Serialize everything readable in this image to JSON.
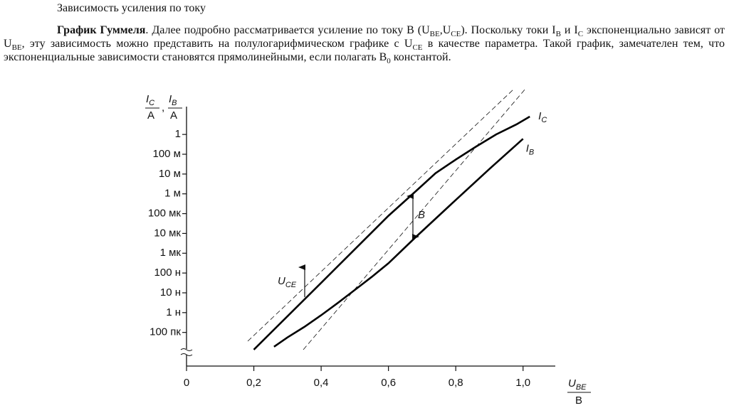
{
  "header": {
    "title": "Зависимость усиления по току"
  },
  "paragraph": {
    "runs": [
      {
        "bold": "График Гуммеля"
      },
      {
        "text": ". Далее подробно рассматривается усиление по току B (U"
      },
      {
        "sub": "BE"
      },
      {
        "text": ",U"
      },
      {
        "sub": "CE"
      },
      {
        "text": "). Поскольку токи I"
      },
      {
        "sub": "B"
      },
      {
        "text": " и I"
      },
      {
        "sub": "C"
      },
      {
        "text": " экспоненциально зависят от U"
      },
      {
        "sub": "BE"
      },
      {
        "text": ", эту зависимость можно представить на полулогарифмическом графике с U"
      },
      {
        "sub": "CE"
      },
      {
        "text": " в качестве параметра. Такой график, замечателен тем, что экспоненциальные зависимости становятся прямолинейными, если полагать B"
      },
      {
        "sub": "0"
      },
      {
        "text": " константой."
      }
    ]
  },
  "chart_data": {
    "type": "line",
    "log_y": true,
    "color": "#000000",
    "y_label": {
      "ic": "I",
      "ic_sub": "C",
      "ib": "I",
      "ib_sub": "B",
      "unit": "А",
      "separator": ","
    },
    "x_label": {
      "symbol": "U",
      "sub": "BE",
      "unit": "В"
    },
    "xlim": [
      0,
      1.1
    ],
    "xticks": [
      0,
      {
        "value": 0.2,
        "label": "0,2"
      },
      {
        "value": 0.4,
        "label": "0,4"
      },
      {
        "value": 0.6,
        "label": "0,6"
      },
      {
        "value": 0.8,
        "label": "0,8"
      },
      {
        "value": 1.0,
        "label": "1,0"
      }
    ],
    "ylim": [
      2e-12,
      30
    ],
    "yticks": [
      {
        "value": 1e-10,
        "label": "100 пк"
      },
      {
        "value": 1e-09,
        "label": "1 н"
      },
      {
        "value": 1e-08,
        "label": "10 н"
      },
      {
        "value": 1e-07,
        "label": "100 н"
      },
      {
        "value": 1e-06,
        "label": "1 мк"
      },
      {
        "value": 1e-05,
        "label": "10 мк"
      },
      {
        "value": 0.0001,
        "label": "100 мк"
      },
      {
        "value": 0.001,
        "label": "1 м"
      },
      {
        "value": 0.01,
        "label": "10 м"
      },
      {
        "value": 0.1,
        "label": "100 м"
      },
      1
    ],
    "series": [
      {
        "name": "I",
        "subscript": "C",
        "x": [
          0.2,
          0.4,
          0.6,
          0.68,
          0.74,
          0.8,
          0.86,
          0.92,
          0.98,
          1.02
        ],
        "values": [
          1.35e-11,
          3.2e-08,
          7.8e-05,
          0.0013,
          0.011,
          0.054,
          0.24,
          1,
          3.2,
          8
        ]
      },
      {
        "name": "I",
        "subscript": "B",
        "x": [
          0.26,
          0.3,
          0.35,
          0.4,
          0.45,
          0.5,
          0.55,
          0.6,
          0.68,
          0.8,
          0.9,
          1.0
        ],
        "values": [
          1.9e-11,
          5.6e-11,
          1.9e-10,
          7.4e-10,
          3.1e-09,
          1.4e-08,
          6.3e-08,
          3.1e-07,
          6.3e-06,
          0.00049,
          0.018,
          0.6
        ]
      }
    ],
    "annotations": {
      "gain": "B",
      "param": "U",
      "param_sub": "CE"
    }
  }
}
